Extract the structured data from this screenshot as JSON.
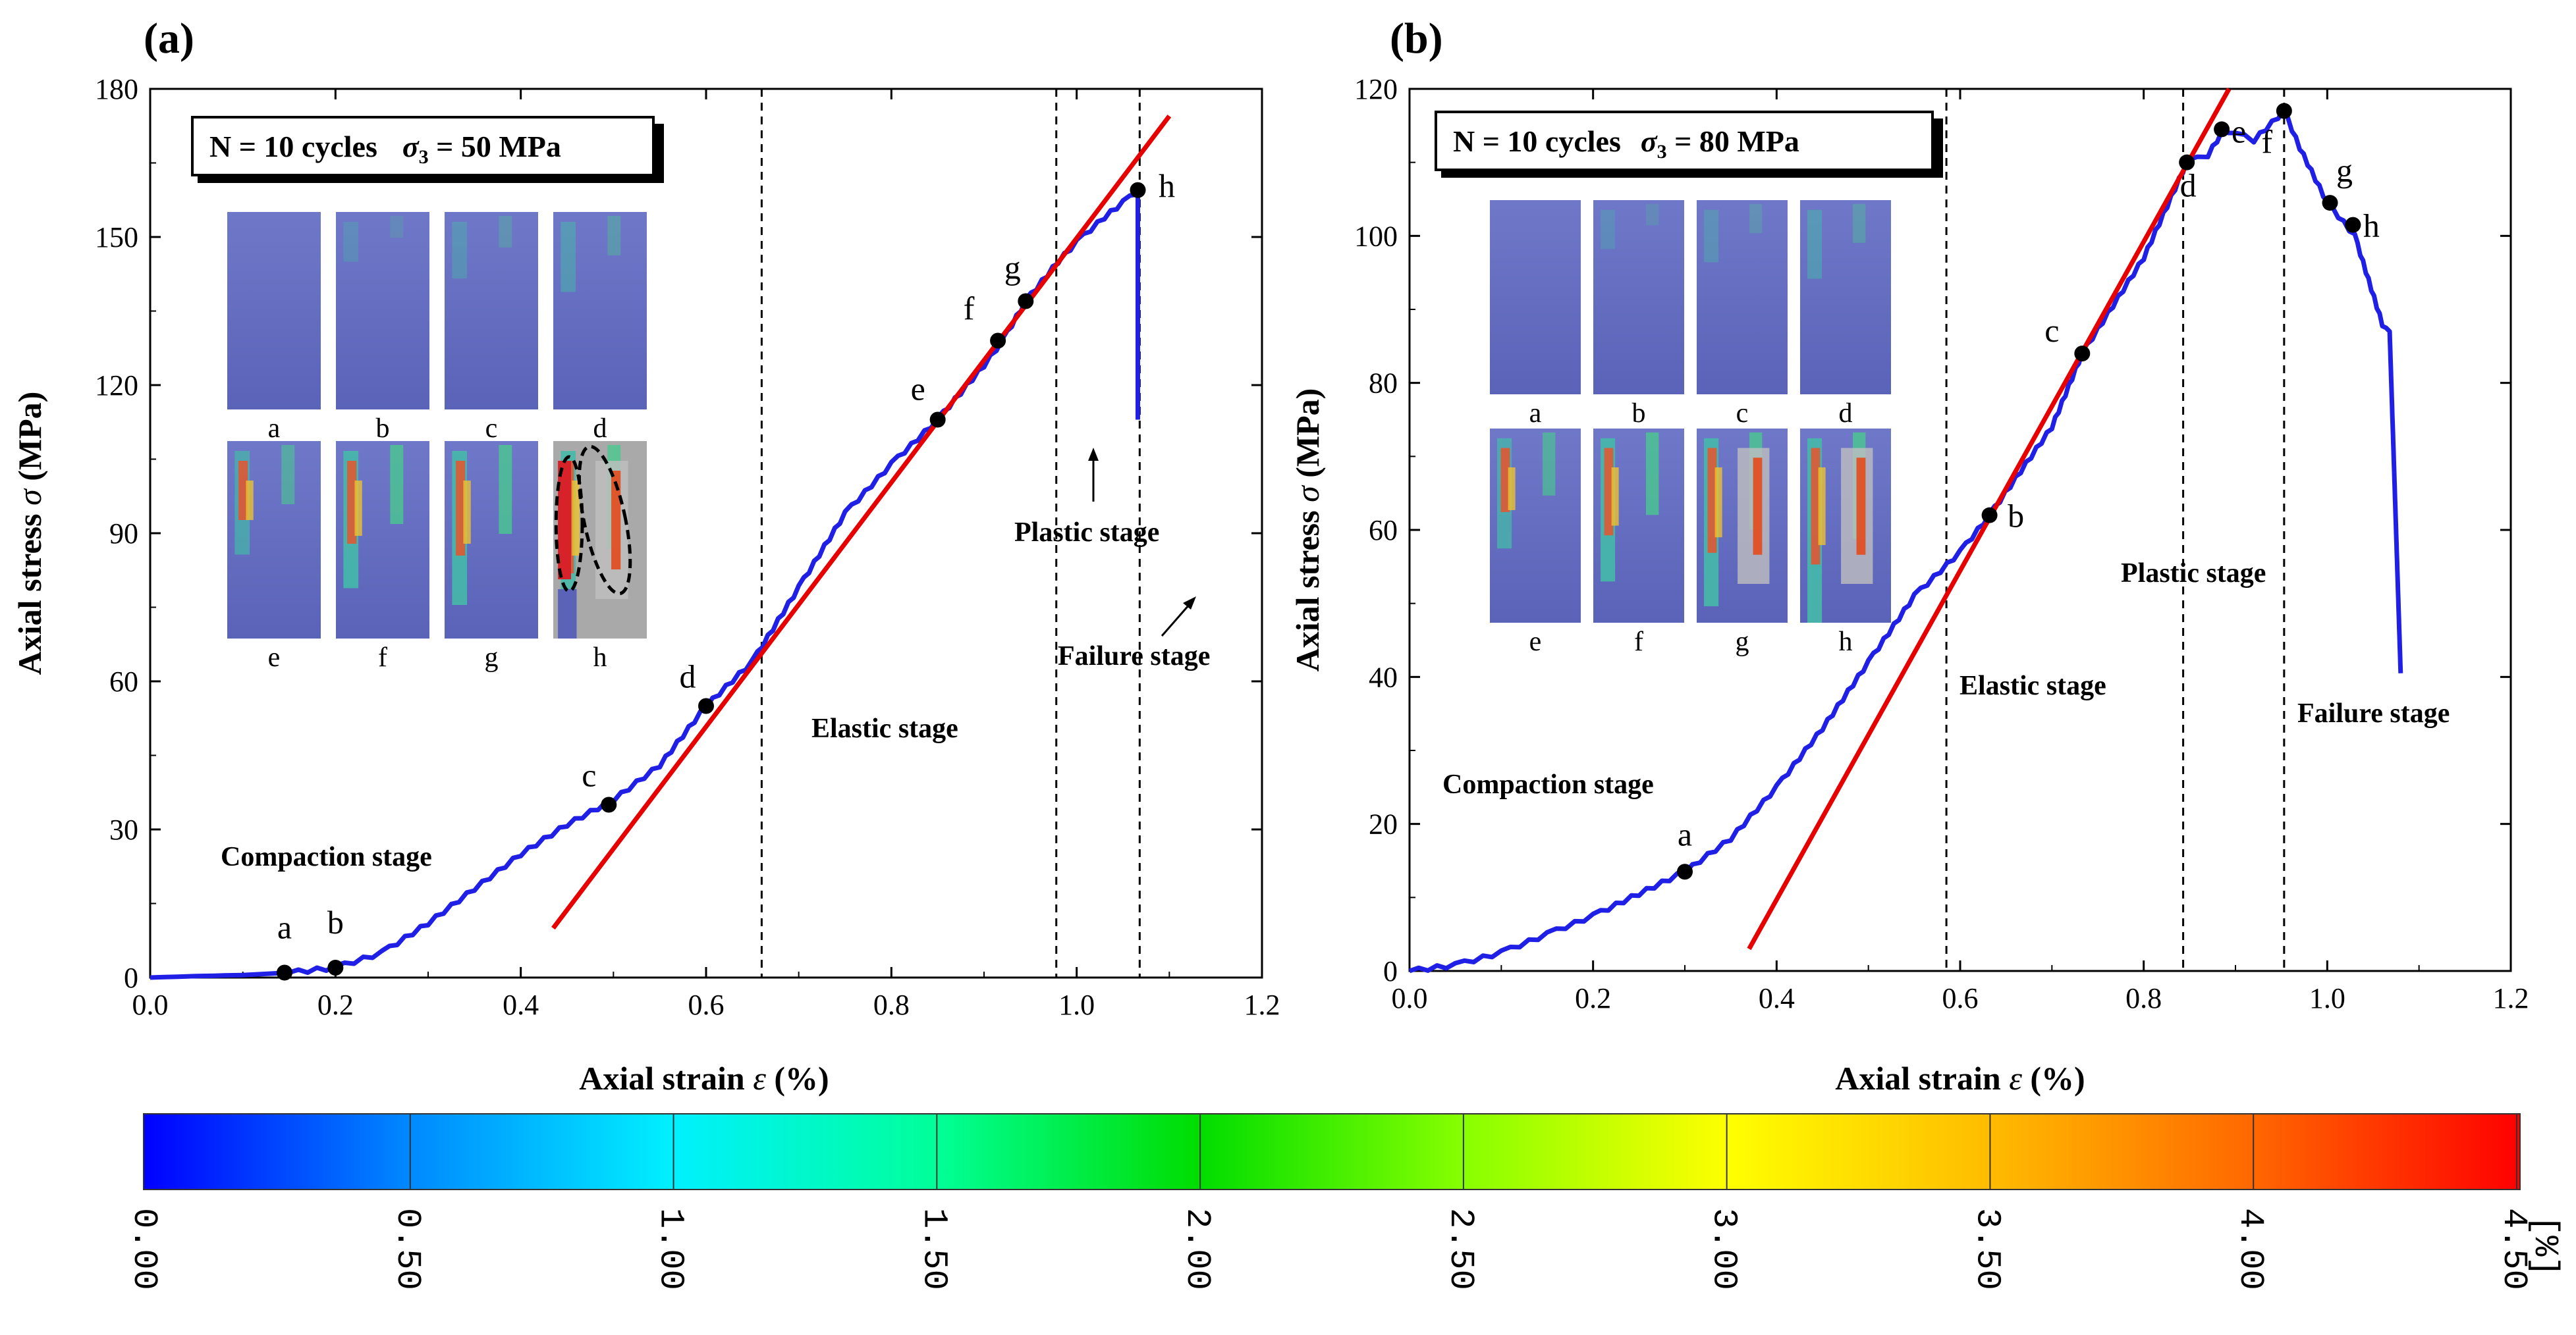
{
  "panels": [
    {
      "id": "a",
      "label": "(a)",
      "info_text": "N = 10 cycles",
      "info_sigma": "σ",
      "info_sigma_sub": "3",
      "info_sigma_val": " = 50 MPa",
      "stage_labels": [
        "Compaction stage",
        "Elastic stage",
        "Plastic stage",
        "Failure stage"
      ],
      "point_labels": [
        "a",
        "b",
        "c",
        "d",
        "e",
        "f",
        "g",
        "h"
      ],
      "thumb_labels": [
        "a",
        "b",
        "c",
        "d",
        "e",
        "f",
        "g",
        "h"
      ]
    },
    {
      "id": "b",
      "label": "(b)",
      "info_text": "N = 10 cycles",
      "info_sigma": "σ",
      "info_sigma_sub": "3",
      "info_sigma_val": " = 80 MPa",
      "stage_labels": [
        "Compaction stage",
        "Elastic stage",
        "Plastic stage",
        "Failure stage"
      ],
      "point_labels": [
        "a",
        "b",
        "c",
        "d",
        "e",
        "f",
        "g",
        "h"
      ],
      "thumb_labels": [
        "a",
        "b",
        "c",
        "d",
        "e",
        "f",
        "g",
        "h"
      ]
    }
  ],
  "colors": {
    "curve": "#1f1fe6",
    "fit_line": "#e60000",
    "point": "#000000",
    "crack_outline": "#000000"
  },
  "colorbar": {
    "unit_label": "[%]",
    "ticks": [
      "0.00",
      "0.50",
      "1.00",
      "1.50",
      "2.00",
      "2.50",
      "3.00",
      "3.50",
      "4.00",
      "4.50"
    ],
    "range": [
      0,
      4.5
    ],
    "colormap": [
      "#0000ff",
      "#00aaff",
      "#00ffff",
      "#00ff66",
      "#00cc00",
      "#99ff00",
      "#ffff00",
      "#ffaa00",
      "#ff6600",
      "#ff0000"
    ]
  },
  "chart_data": [
    {
      "type": "line",
      "title": "",
      "xlabel": "Axial strain ε (%)",
      "xlabel_main": "Axial strain ",
      "xlabel_sym": "ε",
      "xlabel_unit": " (%)",
      "ylabel": "Axial stress σ (MPa)",
      "ylabel_main": "Axial stress ",
      "ylabel_sym": "σ",
      "ylabel_unit": " (MPa)",
      "xlim": [
        0,
        1.2
      ],
      "ylim": [
        0,
        180
      ],
      "xticks": [
        "0.0",
        "0.2",
        "0.4",
        "0.6",
        "0.8",
        "1.0",
        "1.2"
      ],
      "xtick_values": [
        0,
        0.2,
        0.4,
        0.6,
        0.8,
        1.0,
        1.2
      ],
      "yticks": [
        "0",
        "30",
        "60",
        "90",
        "120",
        "150",
        "180"
      ],
      "ytick_values": [
        0,
        30,
        60,
        90,
        120,
        150,
        180
      ],
      "stage_boundaries": [
        0.66,
        0.978,
        1.068
      ],
      "series": [
        {
          "x": [
            0,
            0.05,
            0.1,
            0.15,
            0.2,
            0.25,
            0.3,
            0.35,
            0.4,
            0.45,
            0.5,
            0.55,
            0.6,
            0.65,
            0.7,
            0.75,
            0.8,
            0.85,
            0.9,
            0.92,
            0.945,
            0.98,
            1.0,
            1.03,
            1.05,
            1.065,
            1.066,
            1.066
          ],
          "y": [
            0,
            0.3,
            0.5,
            1,
            2,
            5,
            11,
            18,
            25,
            31,
            36,
            43,
            55,
            64,
            79,
            94,
            104,
            113,
            124,
            129,
            137,
            145,
            149,
            154,
            157,
            159,
            159,
            113
          ]
        }
      ],
      "fit_line": {
        "x": [
          0.435,
          1.1
        ],
        "y": [
          10,
          174.5
        ]
      },
      "points": [
        {
          "label": "a",
          "x": 0.145,
          "y": 1
        },
        {
          "label": "b",
          "x": 0.2,
          "y": 2
        },
        {
          "label": "c",
          "x": 0.495,
          "y": 35
        },
        {
          "label": "d",
          "x": 0.6,
          "y": 55
        },
        {
          "label": "e",
          "x": 0.85,
          "y": 113
        },
        {
          "label": "f",
          "x": 0.915,
          "y": 129
        },
        {
          "label": "g",
          "x": 0.945,
          "y": 137
        },
        {
          "label": "h",
          "x": 1.066,
          "y": 159.5
        }
      ]
    },
    {
      "type": "line",
      "title": "",
      "xlabel": "Axial strain ε (%)",
      "xlabel_main": "Axial strain ",
      "xlabel_sym": "ε",
      "xlabel_unit": " (%)",
      "ylabel": "Axial stress σ (MPa)",
      "ylabel_main": "Axial stress ",
      "ylabel_sym": "σ",
      "ylabel_unit": " (MPa)",
      "xlim": [
        0,
        1.2
      ],
      "ylim": [
        0,
        120
      ],
      "xticks": [
        "0.0",
        "0.2",
        "0.4",
        "0.6",
        "0.8",
        "1.0",
        "1.2"
      ],
      "xtick_values": [
        0,
        0.2,
        0.4,
        0.6,
        0.8,
        1.0,
        1.2
      ],
      "yticks": [
        "0",
        "20",
        "40",
        "60",
        "80",
        "100",
        "120"
      ],
      "ytick_values": [
        0,
        20,
        40,
        60,
        80,
        100,
        120
      ],
      "stage_boundaries": [
        0.585,
        0.843,
        0.953
      ],
      "series": [
        {
          "x": [
            0,
            0.05,
            0.1,
            0.15,
            0.2,
            0.25,
            0.3,
            0.35,
            0.4,
            0.45,
            0.5,
            0.55,
            0.6,
            0.632,
            0.7,
            0.733,
            0.8,
            0.847,
            0.87,
            0.885,
            0.9,
            0.92,
            0.953,
            0.97,
            1.0,
            1.03,
            1.06,
            1.068,
            1.08
          ],
          "y": [
            0,
            0.8,
            2.5,
            5,
            7.5,
            10.5,
            13.5,
            18,
            25,
            33,
            42,
            51,
            57,
            62,
            74,
            84,
            97,
            110,
            111,
            114,
            114,
            113,
            117,
            112,
            104.5,
            100,
            88,
            87,
            40.5
          ]
        }
      ],
      "fit_line": {
        "x": [
          0.37,
          0.893
        ],
        "y": [
          3,
          120
        ]
      },
      "points": [
        {
          "label": "a",
          "x": 0.3,
          "y": 13.5
        },
        {
          "label": "b",
          "x": 0.632,
          "y": 62
        },
        {
          "label": "c",
          "x": 0.733,
          "y": 84
        },
        {
          "label": "d",
          "x": 0.847,
          "y": 110
        },
        {
          "label": "e",
          "x": 0.885,
          "y": 114.5
        },
        {
          "label": "f",
          "x": 0.953,
          "y": 117
        },
        {
          "label": "g",
          "x": 1.003,
          "y": 104.5
        },
        {
          "label": "h",
          "x": 1.028,
          "y": 101.5
        }
      ]
    }
  ]
}
